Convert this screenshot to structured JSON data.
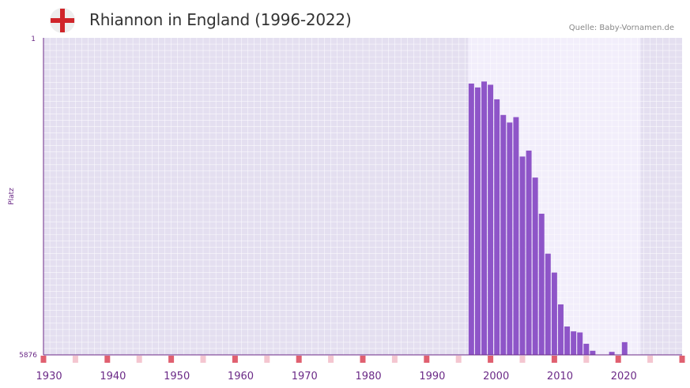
{
  "header": {
    "title": "Rhiannon in England (1996-2022)",
    "source": "Quelle: Baby-Vornamen.de",
    "flag_icon": "england-flag-icon"
  },
  "colors": {
    "bar": "#8e55c8",
    "plot_bg": "#e4dff0",
    "highlight_bg": "#f2eefb",
    "axis": "#6b2a87",
    "grid": "#ffffff",
    "marker_strong": "#e06070",
    "marker_light": "#f4c6d0",
    "flag_red": "#d0252a"
  },
  "chart_data": {
    "type": "bar",
    "title": "Rhiannon in England (1996-2022)",
    "ylabel": "Platz",
    "xlabel": "",
    "y_reversed": true,
    "ylim": [
      1,
      5876
    ],
    "y_ticks": [
      "1",
      "5876"
    ],
    "xlim": [
      1929,
      2029
    ],
    "x_ticks": [
      "1930",
      "1940",
      "1950",
      "1960",
      "1970",
      "1980",
      "1990",
      "2000",
      "2010",
      "2020"
    ],
    "highlight_range": [
      1995.5,
      2022.5
    ],
    "years": [
      1996,
      1997,
      1998,
      1999,
      2000,
      2001,
      2002,
      2003,
      2004,
      2005,
      2006,
      2007,
      2008,
      2009,
      2010,
      2011,
      2012,
      2013,
      2014,
      2015,
      2016,
      2017,
      2018,
      2019,
      2020,
      2021
    ],
    "values": [
      848,
      920,
      810,
      870,
      1140,
      1430,
      1570,
      1470,
      2200,
      2090,
      2590,
      3260,
      4000,
      4350,
      4940,
      5350,
      5440,
      5460,
      5670,
      5800,
      5990,
      5940,
      5820,
      5880,
      5640,
      6010
    ]
  }
}
